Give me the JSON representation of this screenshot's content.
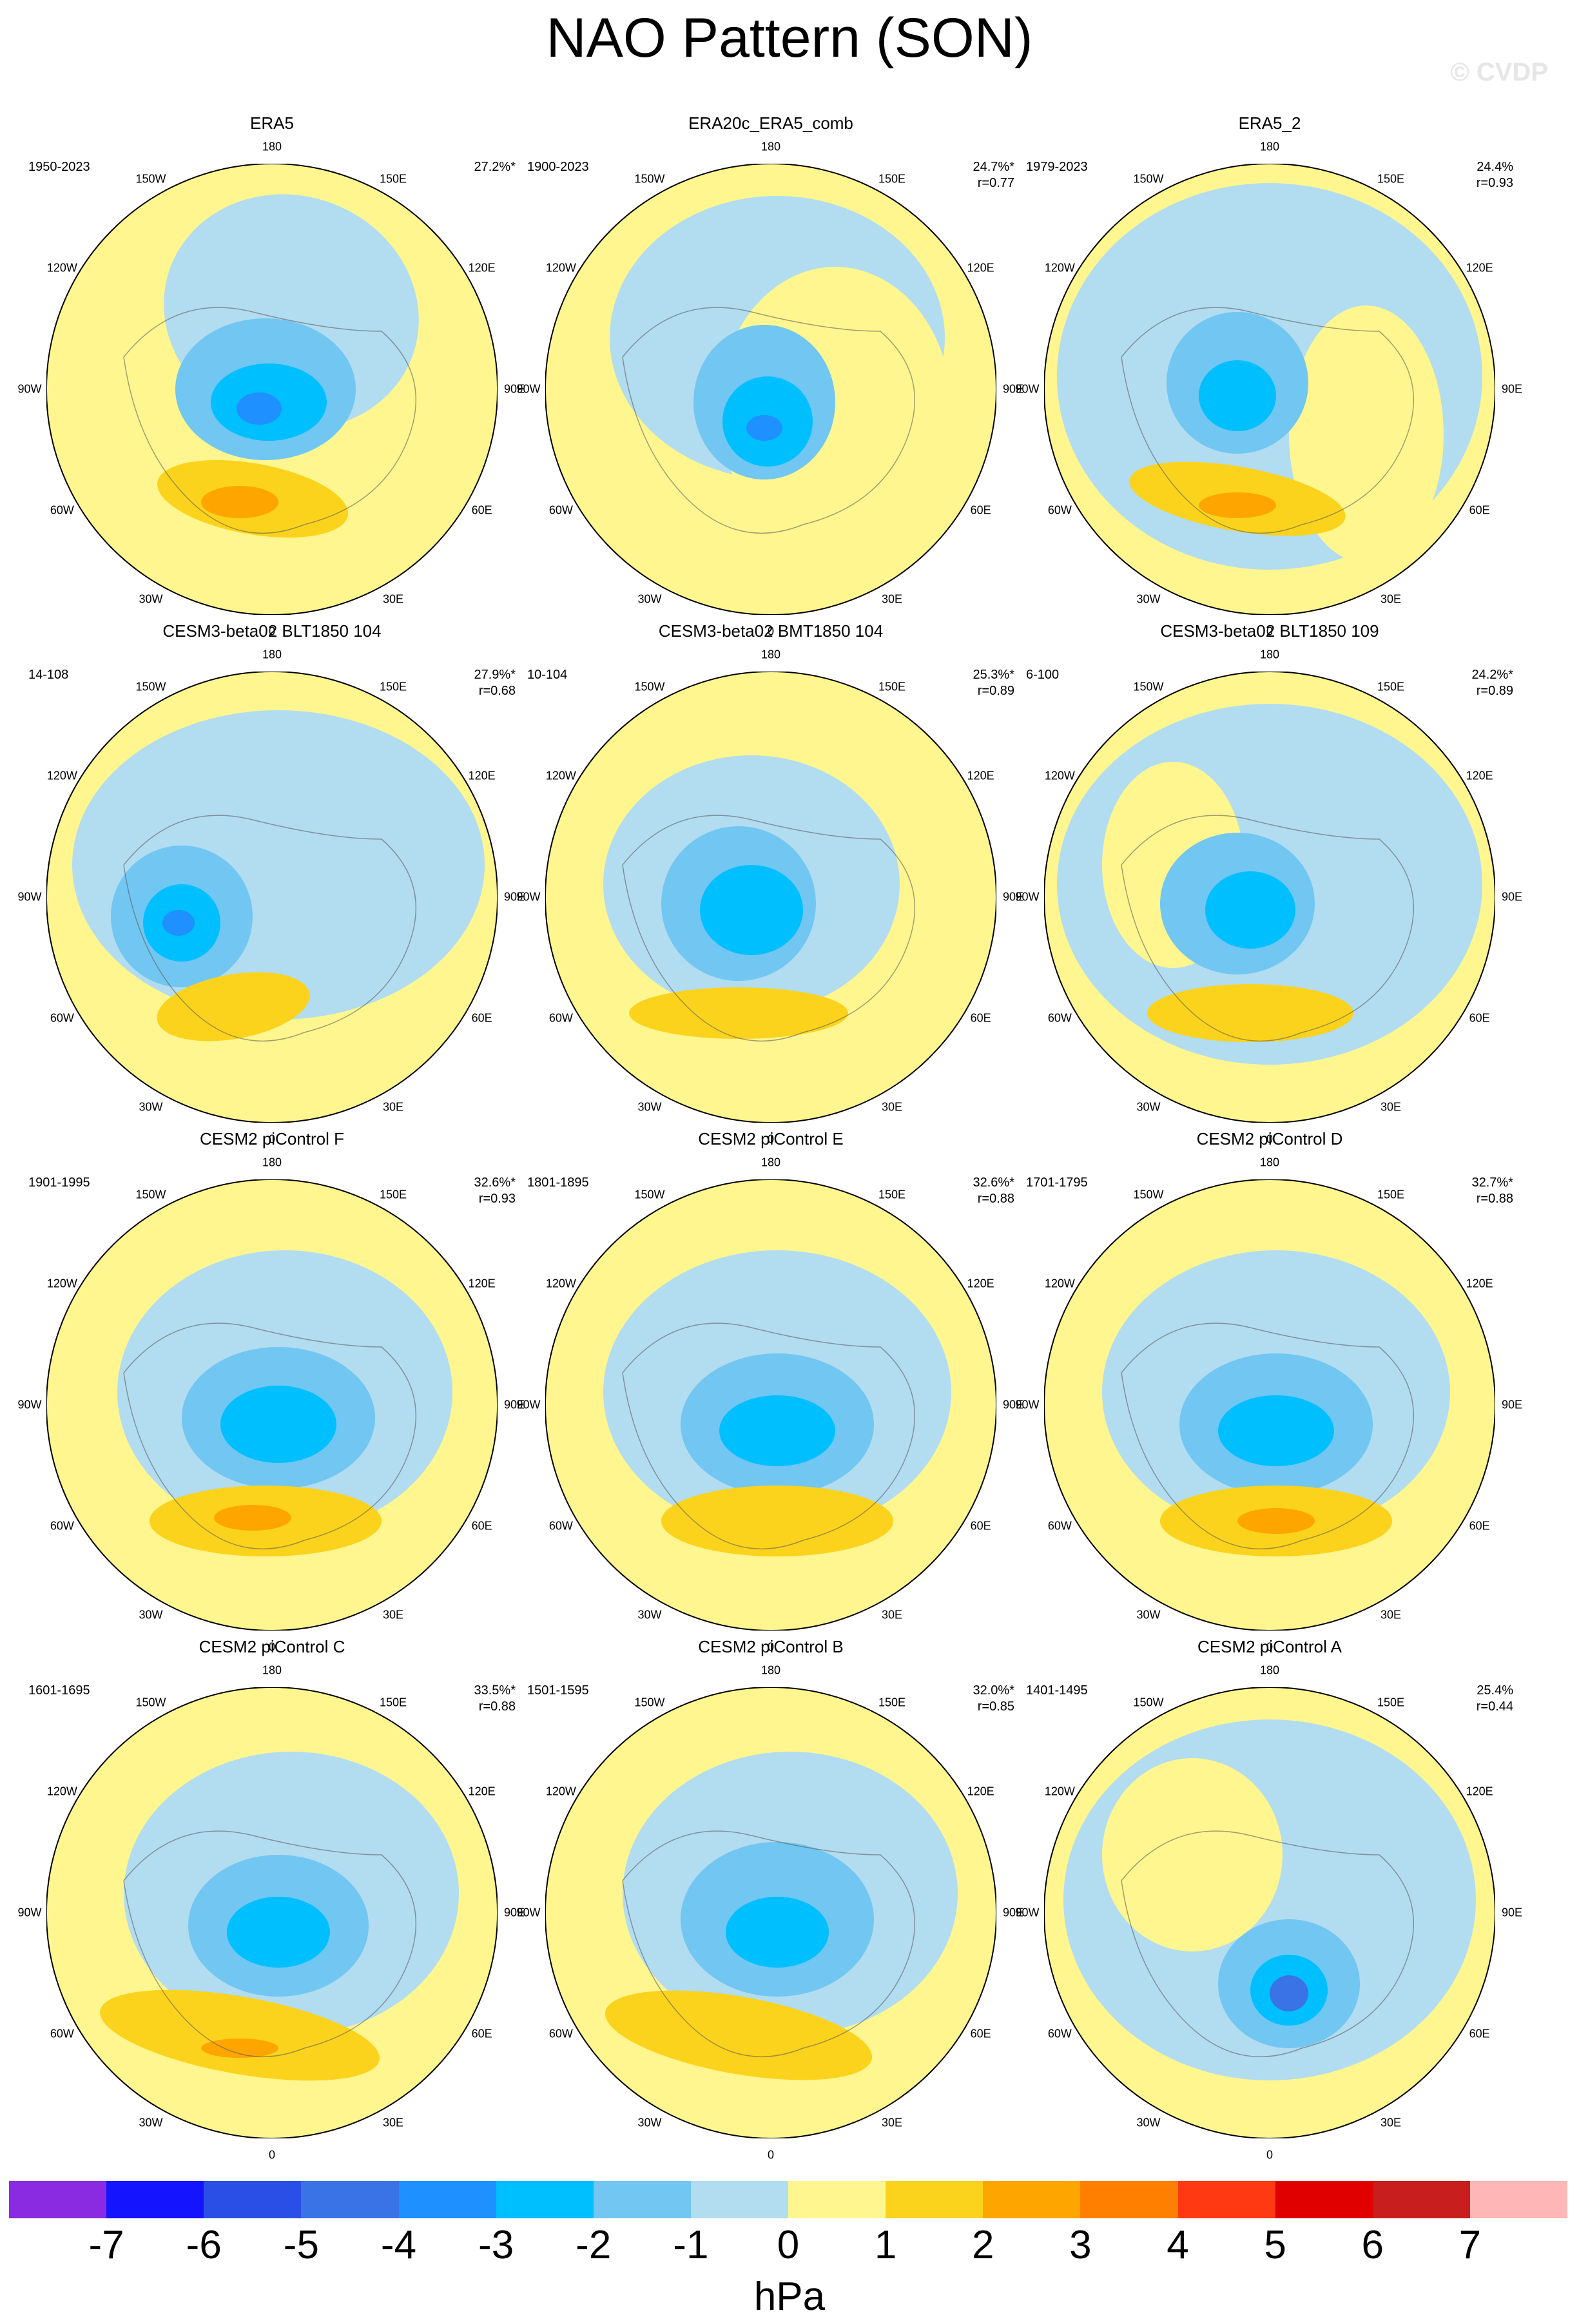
{
  "figure": {
    "title": "NAO Pattern (SON)",
    "watermark": "© CVDP",
    "colors": {
      "ocean_blue": "#b2dcf0",
      "neg1": "#72c6f2",
      "neg2": "#00bfff",
      "neg3": "#1e90ff",
      "neg4": "#3a73e6",
      "pos1": "#fff68f",
      "pos2": "#fcd31c",
      "pos3": "#ffa500"
    },
    "lon_labels": {
      "n180": "180",
      "e150": "150E",
      "e120": "120E",
      "e90": "90E",
      "e60": "60E",
      "e30": "30E",
      "z0": "0",
      "w30": "30W",
      "w60": "60W",
      "w90": "90W",
      "w120": "120W",
      "w150": "150W"
    }
  },
  "chart_data": {
    "type": "polar-contour-map",
    "units": "hPa",
    "panels": [
      {
        "title": "ERA5",
        "period": "1950-2023",
        "variance": "27.2%*",
        "r": ""
      },
      {
        "title": "ERA20c_ERA5_comb",
        "period": "1900-2023",
        "variance": "24.7%*",
        "r": "r=0.77"
      },
      {
        "title": "ERA5_2",
        "period": "1979-2023",
        "variance": "24.4%",
        "r": "r=0.93"
      },
      {
        "title": "CESM3-beta02 BLT1850 104",
        "period": "14-108",
        "variance": "27.9%*",
        "r": "r=0.68"
      },
      {
        "title": "CESM3-beta02 BMT1850 104",
        "period": "10-104",
        "variance": "25.3%*",
        "r": "r=0.89"
      },
      {
        "title": "CESM3-beta02 BLT1850 109",
        "period": "6-100",
        "variance": "24.2%*",
        "r": "r=0.89"
      },
      {
        "title": "CESM2 piControl F",
        "period": "1901-1995",
        "variance": "32.6%*",
        "r": "r=0.93"
      },
      {
        "title": "CESM2 piControl E",
        "period": "1801-1895",
        "variance": "32.6%*",
        "r": "r=0.88"
      },
      {
        "title": "CESM2 piControl D",
        "period": "1701-1795",
        "variance": "32.7%*",
        "r": "r=0.88"
      },
      {
        "title": "CESM2 piControl C",
        "period": "1601-1695",
        "variance": "33.5%*",
        "r": "r=0.88"
      },
      {
        "title": "CESM2 piControl B",
        "period": "1501-1595",
        "variance": "32.0%*",
        "r": "r=0.85"
      },
      {
        "title": "CESM2 piControl A",
        "period": "1401-1495",
        "variance": "25.4%",
        "r": "r=0.44"
      }
    ],
    "colorbar": {
      "labels": [
        "-7",
        "-6",
        "-5",
        "-4",
        "-3",
        "-2",
        "-1",
        "0",
        "1",
        "2",
        "3",
        "4",
        "5",
        "6",
        "7"
      ],
      "colors": [
        "#8a2be2",
        "#1414ff",
        "#2a4fe6",
        "#3a73e6",
        "#1e90ff",
        "#00bfff",
        "#72c6f2",
        "#b2dcf0",
        "#fff68f",
        "#fcd31c",
        "#ffa500",
        "#ff7f00",
        "#ff3a12",
        "#e00000",
        "#c81e1e",
        "#ffb6b6"
      ]
    }
  }
}
